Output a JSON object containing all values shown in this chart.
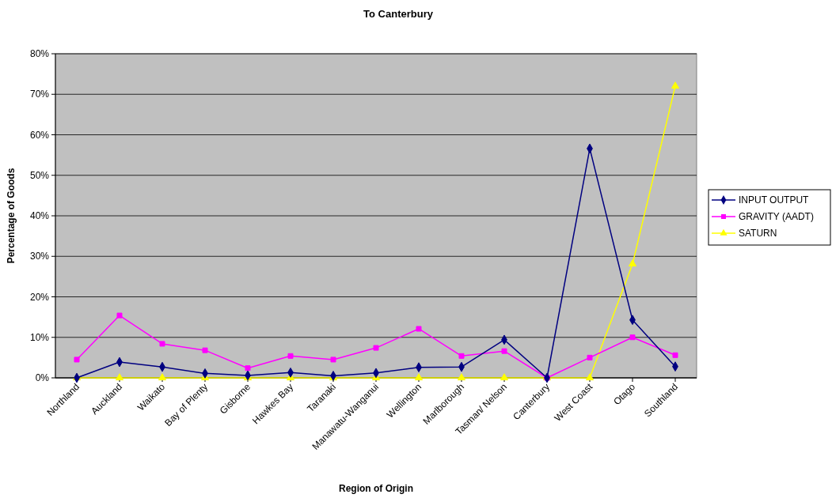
{
  "chart_data": {
    "type": "line",
    "title": "To Canterbury",
    "xlabel": "Region of Origin",
    "ylabel": "Percentage of Goods",
    "categories": [
      "Northland",
      "Auckland",
      "Waikato",
      "Bay of Plenty",
      "Gisborne",
      "Hawkes Bay",
      "Taranaki",
      "Manawatu-Wanganui",
      "Wellington",
      "Marlborough",
      "Tasman/ Nelson",
      "Canterbury",
      "West Coast",
      "Otago",
      "Southland"
    ],
    "series": [
      {
        "name": "INPUT OUTPUT",
        "color": "#000080",
        "marker": "diamond",
        "values": [
          0,
          3.9,
          2.7,
          1.1,
          0.6,
          1.3,
          0.5,
          1.2,
          2.6,
          2.7,
          9.4,
          0,
          56.6,
          14.3,
          2.8
        ]
      },
      {
        "name": "GRAVITY (AADT)",
        "color": "#ff00ff",
        "marker": "square",
        "values": [
          4.5,
          15.4,
          8.4,
          6.8,
          2.4,
          5.4,
          4.5,
          7.4,
          12.1,
          5.4,
          6.6,
          0,
          5.0,
          10.0,
          5.6
        ]
      },
      {
        "name": "SATURN",
        "color": "#ffff00",
        "marker": "triangle",
        "values": [
          0,
          0,
          0,
          0,
          0,
          0,
          0,
          0,
          0,
          0,
          0,
          0,
          0,
          28.1,
          72.0
        ]
      }
    ],
    "ylim": [
      0,
      80
    ],
    "yticks": [
      {
        "value": 0,
        "label": "0%"
      },
      {
        "value": 10,
        "label": "10%"
      },
      {
        "value": 20,
        "label": "20%"
      },
      {
        "value": 30,
        "label": "30%"
      },
      {
        "value": 40,
        "label": "40%"
      },
      {
        "value": 50,
        "label": "50%"
      },
      {
        "value": 60,
        "label": "60%"
      },
      {
        "value": 70,
        "label": "70%"
      },
      {
        "value": 80,
        "label": "80%"
      }
    ],
    "grid": "y",
    "legend": "right",
    "line_style": "solid"
  }
}
